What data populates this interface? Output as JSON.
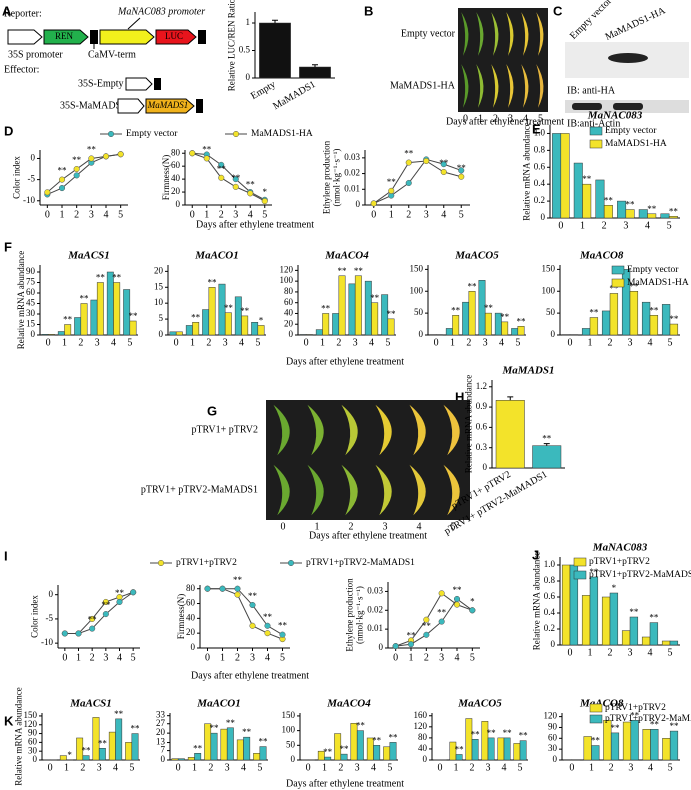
{
  "panel_labels": [
    "A",
    "B",
    "C",
    "D",
    "E",
    "F",
    "G",
    "H",
    "I",
    "J",
    "K"
  ],
  "construct_diagram": {
    "reporter_label": "Reporter:",
    "promoter_label": "MaNAC083 promoter",
    "ren": "REN",
    "luc": "LUC",
    "s35_label": "35S promoter",
    "term_label": "CaMV-term",
    "effector_label": "Effector:",
    "empty_label": "35S-Empty",
    "mads_label": "35S-MaMADS1",
    "mads_box": "MaMADS1"
  },
  "photos": [
    {
      "rows": [
        "Empty vector",
        "MaMADS1-HA"
      ],
      "days": [
        "0",
        "1",
        "2",
        "3",
        "4",
        "5"
      ],
      "xlabel": "Days after ethylene treatment"
    },
    {
      "rows": [
        "pTRV1+ pTRV2",
        "pTRV1+ pTRV2-MaMADS1"
      ],
      "days": [
        "0",
        "1",
        "2",
        "3",
        "4",
        "5"
      ],
      "xlabel": "Days after ethylene treatment"
    }
  ],
  "western_blot": {
    "lanes": [
      "Empty vector",
      "MaMADS1-HA"
    ],
    "blots": [
      "IB: anti-HA",
      "IB:anti-Actin"
    ]
  },
  "chart_data": [
    {
      "type": "bar",
      "ylabel": "Relative LUC/REN Ratio",
      "categories": [
        "Empty",
        "MaMADS1"
      ],
      "values": [
        1,
        0.2
      ],
      "errors": [
        0.05,
        0.04
      ],
      "color": "#111111",
      "ylim": [
        0,
        1.2
      ],
      "yticks": [
        0,
        0.5,
        1
      ]
    },
    {
      "type": "line",
      "ylabel": "Color index",
      "x": [
        0,
        1,
        2,
        3,
        4,
        5
      ],
      "xlim": [
        -0.5,
        5.5
      ],
      "xticks": [
        0,
        1,
        2,
        3,
        4,
        5
      ],
      "ylim": [
        -11,
        2
      ],
      "yticks": [
        -10,
        -5,
        0
      ],
      "series": [
        {
          "name": "Empty vector",
          "color": "#3bb9bd",
          "values": [
            -8.5,
            -7,
            -4,
            -1,
            0.5,
            1
          ]
        },
        {
          "name": "MaMADS1-HA",
          "color": "#f3e32a",
          "values": [
            -8,
            -5,
            -2.5,
            0,
            0.5,
            1
          ],
          "annotations": [
            null,
            "**",
            "**",
            "**",
            null,
            null
          ]
        }
      ]
    },
    {
      "type": "line",
      "ylabel": "Firmness(N)",
      "xlabel": "Days after ethylene treatment",
      "x": [
        0,
        1,
        2,
        3,
        4,
        5
      ],
      "xlim": [
        -0.5,
        5.5
      ],
      "xticks": [
        0,
        1,
        2,
        3,
        4,
        5
      ],
      "ylim": [
        0,
        85
      ],
      "yticks": [
        0,
        20,
        40,
        60,
        80
      ],
      "series": [
        {
          "color": "#3bb9bd",
          "values": [
            80,
            78,
            62,
            40,
            20,
            8
          ]
        },
        {
          "color": "#f3e32a",
          "values": [
            80,
            72,
            42,
            28,
            18,
            6
          ],
          "annotations": [
            null,
            "**",
            "**",
            "**",
            "**",
            "*"
          ]
        }
      ]
    },
    {
      "type": "line",
      "ylabel": [
        "Ethylene production",
        "(nmol·kg⁻¹·s⁻¹)"
      ],
      "x": [
        0,
        1,
        2,
        3,
        4,
        5
      ],
      "xlim": [
        -0.5,
        5.5
      ],
      "xticks": [
        0,
        1,
        2,
        3,
        4,
        5
      ],
      "ylim": [
        0,
        0.035
      ],
      "yticks": [
        0,
        0.01,
        0.02,
        0.03
      ],
      "series": [
        {
          "color": "#3bb9bd",
          "values": [
            0.001,
            0.006,
            0.014,
            0.029,
            0.026,
            0.022
          ]
        },
        {
          "color": "#f3e32a",
          "values": [
            0.001,
            0.009,
            0.027,
            0.028,
            0.021,
            0.018
          ],
          "annotations": [
            null,
            "**",
            "**",
            null,
            "**",
            "**"
          ]
        }
      ]
    },
    {
      "type": "bar",
      "title": "MaNAC083",
      "ylabel": "Relative mRNA abundance",
      "categories": [
        "0",
        "1",
        "2",
        "3",
        "4",
        "5"
      ],
      "ylim": [
        0,
        1.1
      ],
      "yticks": [
        0,
        0.2,
        0.4,
        0.6,
        0.8,
        {
          "value": 1,
          "label": "1.0"
        }
      ],
      "series": [
        {
          "name": "Empty vector",
          "color": "#3bb9bd",
          "values": [
            1,
            0.65,
            0.45,
            0.2,
            0.1,
            0.05
          ]
        },
        {
          "name": "MaMADS1-HA",
          "color": "#f3e32a",
          "values": [
            1,
            0.4,
            0.15,
            0.1,
            0.05,
            0.02
          ],
          "annotations": [
            null,
            "**",
            "**",
            "**",
            "**",
            "**"
          ]
        }
      ]
    },
    {
      "type": "bar",
      "title": "MaACS1",
      "ylabel": "Relative mRNA abundance",
      "categories": [
        "0",
        "1",
        "2",
        "3",
        "4",
        "5"
      ],
      "ylim": [
        0,
        100
      ],
      "yticks": [
        0,
        15,
        30,
        45,
        60,
        75,
        90
      ],
      "series": [
        {
          "color": "#3bb9bd",
          "values": [
            1,
            5,
            25,
            50,
            90,
            65
          ]
        },
        {
          "color": "#f3e32a",
          "values": [
            1,
            15,
            45,
            75,
            75,
            20
          ],
          "annotations": [
            null,
            "**",
            "**",
            "**",
            "**",
            "**"
          ]
        }
      ]
    },
    {
      "type": "bar",
      "title": "MaACO1",
      "categories": [
        "0",
        "1",
        "2",
        "3",
        "4",
        "5"
      ],
      "ylim": [
        0,
        22
      ],
      "yticks": [
        0,
        5,
        10,
        15,
        20
      ],
      "series": [
        {
          "color": "#3bb9bd",
          "values": [
            1,
            3,
            8,
            16,
            12,
            4
          ]
        },
        {
          "color": "#f3e32a",
          "values": [
            1,
            4,
            15,
            7,
            6,
            3
          ],
          "annotations": [
            null,
            "**",
            "**",
            "**",
            "**",
            "*"
          ]
        }
      ]
    },
    {
      "type": "bar",
      "title": "MaACO4",
      "xlabel": "Days after ethylene treatment",
      "categories": [
        "0",
        "1",
        "2",
        "3",
        "4",
        "5"
      ],
      "ylim": [
        0,
        130
      ],
      "yticks": [
        0,
        20,
        40,
        60,
        80,
        100,
        120
      ],
      "series": [
        {
          "color": "#3bb9bd",
          "values": [
            1,
            10,
            40,
            95,
            100,
            75
          ]
        },
        {
          "color": "#f3e32a",
          "values": [
            1,
            40,
            110,
            110,
            60,
            30
          ],
          "annotations": [
            null,
            "**",
            "**",
            "**",
            "**",
            "**"
          ]
        }
      ]
    },
    {
      "type": "bar",
      "title": "MaACO5",
      "categories": [
        "0",
        "1",
        "2",
        "3",
        "4",
        "5"
      ],
      "ylim": [
        0,
        160
      ],
      "yticks": [
        0,
        50,
        100,
        150
      ],
      "series": [
        {
          "color": "#3bb9bd",
          "values": [
            1,
            15,
            75,
            125,
            50,
            15
          ]
        },
        {
          "color": "#f3e32a",
          "values": [
            1,
            45,
            100,
            50,
            30,
            20
          ],
          "annotations": [
            null,
            "**",
            "**",
            "**",
            "**",
            "**"
          ]
        }
      ]
    },
    {
      "type": "bar",
      "title": "MaACO8",
      "categories": [
        "0",
        "1",
        "2",
        "3",
        "4",
        "5"
      ],
      "ylim": [
        0,
        160
      ],
      "yticks": [
        0,
        50,
        100,
        150
      ],
      "series": [
        {
          "name": "Empty vector",
          "color": "#3bb9bd",
          "values": [
            1,
            15,
            55,
            150,
            75,
            70
          ]
        },
        {
          "name": "MaMADS1-HA",
          "color": "#f3e32a",
          "values": [
            1,
            40,
            95,
            100,
            45,
            25
          ],
          "annotations": [
            null,
            "**",
            "**",
            "**",
            "**",
            "**"
          ]
        }
      ]
    },
    {
      "type": "bar",
      "title": "MaMADS1",
      "ylabel": "Relative mRNA abundance",
      "categories": [
        "pTRV1+ pTRV2",
        "pTRV1+ pTRV2-MaMADS1"
      ],
      "values": [
        1,
        0.33
      ],
      "errors": [
        0.05,
        0.03
      ],
      "colors": [
        "#f3e32a",
        "#3bb9bd"
      ],
      "annotations": [
        null,
        "**"
      ],
      "ylim": [
        0,
        1.3
      ],
      "yticks": [
        0,
        0.3,
        0.6,
        0.9,
        1.2
      ]
    },
    {
      "type": "line",
      "ylabel": "Color index",
      "x": [
        0,
        1,
        2,
        3,
        4,
        5
      ],
      "xlim": [
        -0.5,
        5.5
      ],
      "xticks": [
        0,
        1,
        2,
        3,
        4,
        5
      ],
      "ylim": [
        -11,
        2
      ],
      "yticks": [
        -10,
        -5,
        0
      ],
      "series": [
        {
          "name": "pTRV1+pTRV2",
          "color": "#f3e32a",
          "values": [
            -8,
            -8,
            -5,
            -1.5,
            -0.5,
            0.5
          ]
        },
        {
          "name": "pTRV1+pTRV2-MaMADS1",
          "color": "#3bb9bd",
          "values": [
            -8,
            -8,
            -7,
            -4,
            -1.5,
            0.5
          ],
          "annotations": [
            null,
            null,
            "**",
            "**",
            "**",
            null
          ]
        }
      ]
    },
    {
      "type": "line",
      "ylabel": "Firmness(N)",
      "xlabel": "Days after ethylene treatment",
      "x": [
        0,
        1,
        2,
        3,
        4,
        5
      ],
      "xlim": [
        -0.5,
        5.5
      ],
      "xticks": [
        0,
        1,
        2,
        3,
        4,
        5
      ],
      "ylim": [
        0,
        85
      ],
      "yticks": [
        0,
        20,
        40,
        60,
        80
      ],
      "series": [
        {
          "color": "#f3e32a",
          "values": [
            80,
            80,
            72,
            30,
            20,
            12
          ]
        },
        {
          "color": "#3bb9bd",
          "values": [
            80,
            80,
            80,
            58,
            30,
            18
          ],
          "annotations": [
            null,
            null,
            "**",
            "**",
            "**",
            "**"
          ]
        }
      ]
    },
    {
      "type": "line",
      "ylabel": [
        "Ethylene production",
        "(nmol·kg⁻¹·s⁻¹)"
      ],
      "x": [
        0,
        1,
        2,
        3,
        4,
        5
      ],
      "xlim": [
        -0.5,
        5.5
      ],
      "xticks": [
        0,
        1,
        2,
        3,
        4,
        5
      ],
      "ylim": [
        0,
        0.035
      ],
      "yticks": [
        0,
        0.01,
        0.02,
        0.03
      ],
      "series": [
        {
          "color": "#f3e32a",
          "values": [
            0.001,
            0.004,
            0.015,
            0.029,
            0.023,
            0.02
          ]
        },
        {
          "color": "#3bb9bd",
          "values": [
            0.001,
            0.002,
            0.007,
            0.014,
            0.026,
            0.02
          ],
          "annotations": [
            null,
            "**",
            "**",
            "**",
            "**",
            "*"
          ]
        }
      ]
    },
    {
      "type": "bar",
      "title": "MaNAC083",
      "ylabel": "Relative mRNA abundance",
      "categories": [
        "0",
        "1",
        "2",
        "3",
        "4",
        "5"
      ],
      "ylim": [
        0,
        1.1
      ],
      "yticks": [
        0,
        0.2,
        0.4,
        0.6,
        0.8,
        {
          "value": 1,
          "label": "1.0"
        }
      ],
      "series": [
        {
          "name": "pTRV1+pTRV2",
          "color": "#f3e32a",
          "values": [
            1,
            0.62,
            0.6,
            0.18,
            0.1,
            0.05
          ]
        },
        {
          "name": "pTRV1+pTRV2-MaMADS1",
          "color": "#3bb9bd",
          "values": [
            1,
            0.85,
            0.65,
            0.35,
            0.28,
            0.05
          ],
          "annotations": [
            null,
            "**",
            "*",
            "**",
            "**",
            null
          ]
        }
      ]
    },
    {
      "type": "bar",
      "title": "MaACS1",
      "ylabel": "Relative mRNA abundance",
      "categories": [
        "0",
        "1",
        "2",
        "3",
        "4",
        "5"
      ],
      "ylim": [
        0,
        160
      ],
      "yticks": [
        0,
        30,
        60,
        90,
        120,
        150
      ],
      "series": [
        {
          "color": "#f3e32a",
          "values": [
            1,
            15,
            75,
            145,
            95,
            60
          ]
        },
        {
          "color": "#3bb9bd",
          "values": [
            1,
            1,
            15,
            40,
            140,
            90
          ],
          "annotations": [
            null,
            "*",
            "**",
            "**",
            "**",
            "**"
          ]
        }
      ]
    },
    {
      "type": "bar",
      "title": "MaACO1",
      "categories": [
        "0",
        "1",
        "2",
        "3",
        "4",
        "5"
      ],
      "ylim": [
        0,
        35
      ],
      "yticks": [
        0,
        7,
        13,
        20,
        27,
        33
      ],
      "series": [
        {
          "color": "#f3e32a",
          "values": [
            1,
            2,
            27,
            23,
            15,
            5
          ]
        },
        {
          "color": "#3bb9bd",
          "values": [
            1,
            5,
            20,
            24,
            17,
            10
          ],
          "annotations": [
            null,
            "**",
            "**",
            "**",
            "**",
            "**"
          ]
        }
      ]
    },
    {
      "type": "bar",
      "title": "MaACO4",
      "xlabel": "Days after ethylene treatment",
      "categories": [
        "0",
        "1",
        "2",
        "3",
        "4",
        "5"
      ],
      "ylim": [
        0,
        160
      ],
      "yticks": [
        0,
        50,
        100,
        150
      ],
      "series": [
        {
          "color": "#f3e32a",
          "values": [
            1,
            30,
            90,
            125,
            75,
            45
          ]
        },
        {
          "color": "#3bb9bd",
          "values": [
            1,
            10,
            20,
            100,
            50,
            60
          ],
          "annotations": [
            null,
            "**",
            "**",
            "**",
            "**",
            "**"
          ]
        }
      ]
    },
    {
      "type": "bar",
      "title": "MaACO5",
      "categories": [
        "0",
        "1",
        "2",
        "3",
        "4",
        "5"
      ],
      "ylim": [
        0,
        170
      ],
      "yticks": [
        0,
        40,
        80,
        120,
        160
      ],
      "series": [
        {
          "color": "#f3e32a",
          "values": [
            1,
            65,
            150,
            140,
            80,
            60
          ]
        },
        {
          "color": "#3bb9bd",
          "values": [
            1,
            20,
            75,
            80,
            80,
            70
          ],
          "annotations": [
            null,
            "**",
            "**",
            "**",
            "**",
            "**"
          ]
        }
      ]
    },
    {
      "type": "bar",
      "title": "MaACO8",
      "categories": [
        "0",
        "1",
        "2",
        "3",
        "4",
        "5"
      ],
      "ylim": [
        0,
        130
      ],
      "yticks": [
        0,
        30,
        60,
        90,
        120
      ],
      "series": [
        {
          "name": "pTRV1+pTRV2",
          "color": "#f3e32a",
          "values": [
            1,
            65,
            110,
            105,
            85,
            60
          ]
        },
        {
          "name": "pTRV1+pTRV2-MaMADS1",
          "color": "#3bb9bd",
          "values": [
            1,
            40,
            75,
            110,
            85,
            80
          ],
          "annotations": [
            null,
            "**",
            "**",
            "**",
            "**",
            "**"
          ]
        }
      ]
    }
  ]
}
